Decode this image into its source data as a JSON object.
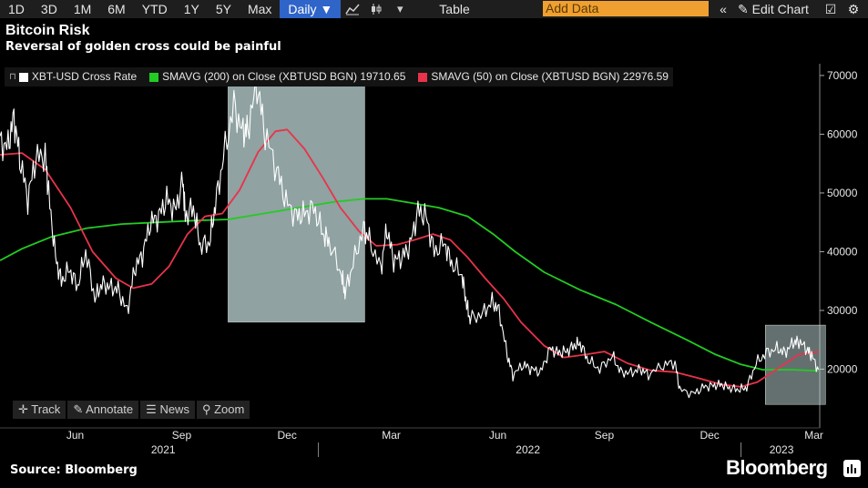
{
  "toolbar": {
    "ranges": [
      "1D",
      "3D",
      "1M",
      "6M",
      "YTD",
      "1Y",
      "5Y",
      "Max"
    ],
    "frequency": "Daily ▼",
    "table_label": "Table",
    "add_data_placeholder": "Add Data",
    "edit_chart_label": "Edit Chart",
    "icons": [
      "line-chart-icon",
      "candlestick-icon",
      "dropdown-arrow-icon",
      "double-chevron-left-icon",
      "pencil-icon",
      "edit-settings-icon",
      "gear-icon"
    ]
  },
  "header": {
    "title": "Bitcoin Risk",
    "subtitle": "Reversal of golden cross could be painful"
  },
  "legend": {
    "items": [
      {
        "label": "XBT-USD Cross Rate",
        "color": "#ffffff"
      },
      {
        "label": "SMAVG (200)  on Close (XBTUSD BGN) 19710.65",
        "color": "#22cc22"
      },
      {
        "label": "SMAVG (50)  on Close (XBTUSD BGN) 22976.59",
        "color": "#e8334a"
      }
    ]
  },
  "bottom_tools": [
    "Track",
    "Annotate",
    "News",
    "Zoom"
  ],
  "footer": {
    "source": "Source: Bloomberg",
    "brand": "Bloomberg"
  },
  "chart_data": {
    "type": "line",
    "title": "Bitcoin Risk",
    "subtitle": "Reversal of golden cross could be painful",
    "x_axis": {
      "range": [
        "2021-04-01",
        "2023-03-10"
      ],
      "month_labels": [
        "Jun",
        "Sep",
        "Dec",
        "Mar",
        "Jun",
        "Sep",
        "Dec",
        "Mar"
      ],
      "year_labels": [
        "2021",
        "2022",
        "2023"
      ]
    },
    "y_axis": {
      "range": [
        10000,
        72000
      ],
      "ticks": [
        20000,
        30000,
        40000,
        50000,
        60000,
        70000
      ],
      "tick_labels": [
        "20000",
        "30000",
        "40000",
        "50000",
        "60000",
        "70000"
      ],
      "position": "right"
    },
    "grid": false,
    "legend_placement": "top-left",
    "series": [
      {
        "name": "XBT-USD Cross Rate",
        "color": "#ffffff",
        "points": [
          [
            "2021-04-01",
            58500
          ],
          [
            "2021-04-08",
            58000
          ],
          [
            "2021-04-13",
            63000
          ],
          [
            "2021-04-18",
            56000
          ],
          [
            "2021-04-25",
            49000
          ],
          [
            "2021-05-02",
            56000
          ],
          [
            "2021-05-10",
            56500
          ],
          [
            "2021-05-13",
            50000
          ],
          [
            "2021-05-19",
            39000
          ],
          [
            "2021-05-24",
            35000
          ],
          [
            "2021-05-31",
            37000
          ],
          [
            "2021-06-07",
            34000
          ],
          [
            "2021-06-14",
            40000
          ],
          [
            "2021-06-22",
            32000
          ],
          [
            "2021-06-28",
            34500
          ],
          [
            "2021-07-05",
            34000
          ],
          [
            "2021-07-12",
            33500
          ],
          [
            "2021-07-20",
            29800
          ],
          [
            "2021-07-26",
            37000
          ],
          [
            "2021-08-02",
            39500
          ],
          [
            "2021-08-09",
            45000
          ],
          [
            "2021-08-16",
            46000
          ],
          [
            "2021-08-23",
            49000
          ],
          [
            "2021-08-30",
            47000
          ],
          [
            "2021-09-06",
            52000
          ],
          [
            "2021-09-08",
            46000
          ],
          [
            "2021-09-15",
            47500
          ],
          [
            "2021-09-21",
            41000
          ],
          [
            "2021-09-29",
            41500
          ],
          [
            "2021-10-04",
            48000
          ],
          [
            "2021-10-11",
            56000
          ],
          [
            "2021-10-20",
            65000
          ],
          [
            "2021-10-28",
            60000
          ],
          [
            "2021-11-01",
            61000
          ],
          [
            "2021-11-09",
            68500
          ],
          [
            "2021-11-16",
            60000
          ],
          [
            "2021-11-26",
            54000
          ],
          [
            "2021-12-04",
            48500
          ],
          [
            "2021-12-13",
            46000
          ],
          [
            "2021-12-20",
            46500
          ],
          [
            "2021-12-28",
            47500
          ],
          [
            "2022-01-05",
            43000
          ],
          [
            "2022-01-10",
            41800
          ],
          [
            "2022-01-21",
            36000
          ],
          [
            "2022-01-24",
            33000
          ],
          [
            "2022-01-31",
            38000
          ],
          [
            "2022-02-09",
            44000
          ],
          [
            "2022-02-14",
            42000
          ],
          [
            "2022-02-24",
            37000
          ],
          [
            "2022-03-01",
            44000
          ],
          [
            "2022-03-07",
            38500
          ],
          [
            "2022-03-14",
            39000
          ],
          [
            "2022-03-21",
            41000
          ],
          [
            "2022-03-28",
            47000
          ],
          [
            "2022-04-04",
            46000
          ],
          [
            "2022-04-11",
            40000
          ],
          [
            "2022-04-20",
            41500
          ],
          [
            "2022-04-26",
            38000
          ],
          [
            "2022-05-05",
            36000
          ],
          [
            "2022-05-09",
            31000
          ],
          [
            "2022-05-12",
            28500
          ],
          [
            "2022-05-23",
            29500
          ],
          [
            "2022-05-31",
            31500
          ],
          [
            "2022-06-06",
            30000
          ],
          [
            "2022-06-13",
            22500
          ],
          [
            "2022-06-18",
            19000
          ],
          [
            "2022-06-27",
            20800
          ],
          [
            "2022-07-04",
            20000
          ],
          [
            "2022-07-12",
            19500
          ],
          [
            "2022-07-20",
            23500
          ],
          [
            "2022-07-27",
            22800
          ],
          [
            "2022-08-03",
            23000
          ],
          [
            "2022-08-10",
            24000
          ],
          [
            "2022-08-15",
            24400
          ],
          [
            "2022-08-22",
            21500
          ],
          [
            "2022-09-01",
            20000
          ],
          [
            "2022-09-12",
            22300
          ],
          [
            "2022-09-19",
            19500
          ],
          [
            "2022-09-28",
            19400
          ],
          [
            "2022-10-06",
            20000
          ],
          [
            "2022-10-13",
            19100
          ],
          [
            "2022-10-26",
            20700
          ],
          [
            "2022-11-05",
            21200
          ],
          [
            "2022-11-09",
            16500
          ],
          [
            "2022-11-21",
            15800
          ],
          [
            "2022-11-30",
            17000
          ],
          [
            "2022-12-08",
            17200
          ],
          [
            "2022-12-15",
            17400
          ],
          [
            "2022-12-22",
            16800
          ],
          [
            "2022-12-30",
            16500
          ],
          [
            "2023-01-06",
            16900
          ],
          [
            "2023-01-14",
            21000
          ],
          [
            "2023-01-23",
            22800
          ],
          [
            "2023-02-01",
            23500
          ],
          [
            "2023-02-08",
            22800
          ],
          [
            "2023-02-15",
            24500
          ],
          [
            "2023-02-20",
            24700
          ],
          [
            "2023-02-27",
            23400
          ],
          [
            "2023-03-03",
            22300
          ],
          [
            "2023-03-09",
            19900
          ]
        ]
      },
      {
        "name": "SMAVG (200)  on Close (XBTUSD BGN)",
        "color": "#22cc22",
        "last_value": 19710.65,
        "points": [
          [
            "2021-04-01",
            38500
          ],
          [
            "2021-04-20",
            40500
          ],
          [
            "2021-05-15",
            42500
          ],
          [
            "2021-06-15",
            44000
          ],
          [
            "2021-07-15",
            44700
          ],
          [
            "2021-08-15",
            45000
          ],
          [
            "2021-09-15",
            45300
          ],
          [
            "2021-10-15",
            45500
          ],
          [
            "2021-11-15",
            46500
          ],
          [
            "2021-12-15",
            47500
          ],
          [
            "2022-01-15",
            48500
          ],
          [
            "2022-02-10",
            49000
          ],
          [
            "2022-03-01",
            49000
          ],
          [
            "2022-03-25",
            48200
          ],
          [
            "2022-04-15",
            47500
          ],
          [
            "2022-05-10",
            46000
          ],
          [
            "2022-06-01",
            43000
          ],
          [
            "2022-06-20",
            40000
          ],
          [
            "2022-07-15",
            36500
          ],
          [
            "2022-08-15",
            33500
          ],
          [
            "2022-09-15",
            31000
          ],
          [
            "2022-10-15",
            28000
          ],
          [
            "2022-11-15",
            25000
          ],
          [
            "2022-12-10",
            22500
          ],
          [
            "2023-01-01",
            20800
          ],
          [
            "2023-01-20",
            19900
          ],
          [
            "2023-02-15",
            19900
          ],
          [
            "2023-03-09",
            19710.65
          ]
        ]
      },
      {
        "name": "SMAVG (50)  on Close (XBTUSD BGN)",
        "color": "#e8334a",
        "last_value": 22976.59,
        "points": [
          [
            "2021-04-01",
            56500
          ],
          [
            "2021-04-20",
            56800
          ],
          [
            "2021-05-10",
            54000
          ],
          [
            "2021-06-01",
            47500
          ],
          [
            "2021-06-20",
            40000
          ],
          [
            "2021-07-10",
            35500
          ],
          [
            "2021-07-25",
            33800
          ],
          [
            "2021-08-10",
            34500
          ],
          [
            "2021-08-25",
            37500
          ],
          [
            "2021-09-10",
            43000
          ],
          [
            "2021-09-25",
            46000
          ],
          [
            "2021-10-10",
            46500
          ],
          [
            "2021-10-25",
            50500
          ],
          [
            "2021-11-10",
            57000
          ],
          [
            "2021-11-25",
            60500
          ],
          [
            "2021-12-05",
            60800
          ],
          [
            "2021-12-20",
            57500
          ],
          [
            "2022-01-05",
            52500
          ],
          [
            "2022-01-20",
            47500
          ],
          [
            "2022-02-05",
            43500
          ],
          [
            "2022-02-20",
            41000
          ],
          [
            "2022-03-10",
            41200
          ],
          [
            "2022-03-25",
            42000
          ],
          [
            "2022-04-10",
            43000
          ],
          [
            "2022-04-25",
            42000
          ],
          [
            "2022-05-10",
            39000
          ],
          [
            "2022-05-25",
            35500
          ],
          [
            "2022-06-10",
            32000
          ],
          [
            "2022-06-25",
            28000
          ],
          [
            "2022-07-15",
            24000
          ],
          [
            "2022-08-01",
            22000
          ],
          [
            "2022-08-20",
            22500
          ],
          [
            "2022-09-05",
            23000
          ],
          [
            "2022-09-25",
            21000
          ],
          [
            "2022-10-15",
            19800
          ],
          [
            "2022-11-05",
            19500
          ],
          [
            "2022-11-25",
            18500
          ],
          [
            "2022-12-15",
            17400
          ],
          [
            "2023-01-01",
            17000
          ],
          [
            "2023-01-15",
            17800
          ],
          [
            "2023-02-01",
            20000
          ],
          [
            "2023-02-20",
            22500
          ],
          [
            "2023-03-09",
            22976.59
          ]
        ]
      }
    ],
    "highlights": [
      {
        "from": "2021-10-15",
        "to": "2022-02-10",
        "y_from": 28000,
        "y_to": 69500
      },
      {
        "from": "2023-01-22",
        "to": "2023-03-15",
        "y_from": 14000,
        "y_to": 27500
      }
    ]
  }
}
